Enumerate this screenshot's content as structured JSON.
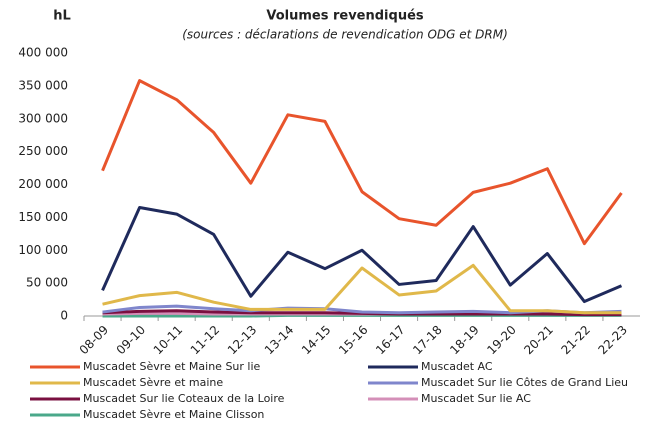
{
  "chart_data": {
    "type": "line",
    "title": "Volumes revendiqués",
    "subtitle": "(sources : déclarations de revendication ODG et DRM)",
    "y_label": "hL",
    "categories": [
      "08-09",
      "09-10",
      "10-11",
      "11-12",
      "12-13",
      "13-14",
      "14-15",
      "15-16",
      "16-17",
      "17-18",
      "18-19",
      "19-20",
      "20-21",
      "21-22",
      "22-23"
    ],
    "ylim": [
      0,
      400000
    ],
    "yticks": [
      0,
      {
        "value": 50000,
        "label": "50 000"
      },
      {
        "value": 100000,
        "label": "100 000"
      },
      {
        "value": 150000,
        "label": "150 000"
      },
      {
        "value": 200000,
        "label": "200 000"
      },
      {
        "value": 250000,
        "label": "250 000"
      },
      {
        "value": 300000,
        "label": "300 000"
      },
      {
        "value": 350000,
        "label": "350 000"
      },
      {
        "value": 400000,
        "label": "400 000"
      }
    ],
    "grid": false,
    "legend": "bottom",
    "series": [
      {
        "name": "Muscadet Sèvre et Maine Sur lie",
        "color": "#e8542c",
        "values": [
          221000,
          358000,
          329000,
          279000,
          202000,
          306000,
          296000,
          189000,
          148000,
          138000,
          188000,
          202000,
          224000,
          110000,
          187000
        ]
      },
      {
        "name": "Muscadet AC",
        "color": "#1f2a5c",
        "values": [
          39000,
          165000,
          155000,
          124000,
          30000,
          97000,
          72000,
          100000,
          48000,
          54000,
          136000,
          47000,
          95000,
          22000,
          46000
        ]
      },
      {
        "name": "Muscadet Sèvre et maine",
        "color": "#e0b84a",
        "values": [
          18000,
          31000,
          36000,
          21000,
          10000,
          10000,
          10000,
          73000,
          32000,
          38000,
          77000,
          8000,
          8000,
          5000,
          5000
        ]
      },
      {
        "name": "Muscadet Sur lie Côtes de Grand Lieu",
        "color": "#7f86cc",
        "values": [
          6000,
          13000,
          15000,
          11000,
          8000,
          12000,
          11000,
          6000,
          5000,
          6000,
          7000,
          5000,
          8000,
          5000,
          7000
        ]
      },
      {
        "name": "Muscadet Sur lie Coteaux de la Loire",
        "color": "#7a1040",
        "values": [
          5000,
          7000,
          8000,
          6000,
          5000,
          5000,
          5000,
          4000,
          3000,
          3000,
          3000,
          3000,
          3000,
          2000,
          2000
        ]
      },
      {
        "name": "Muscadet Sur lie AC",
        "color": "#d48fb8",
        "values": [
          3000,
          4000,
          4000,
          3000,
          3000,
          3000,
          3000,
          3000,
          3000,
          3000,
          3000,
          3000,
          3000,
          3000,
          3000
        ]
      },
      {
        "name": "Muscadet Sèvre et Maine Clisson",
        "color": "#4aa88a",
        "values": [
          0,
          0,
          0,
          0,
          0,
          1000,
          1000,
          1000,
          1000,
          1000,
          1000,
          1000,
          1000,
          1000,
          1000
        ]
      }
    ]
  }
}
